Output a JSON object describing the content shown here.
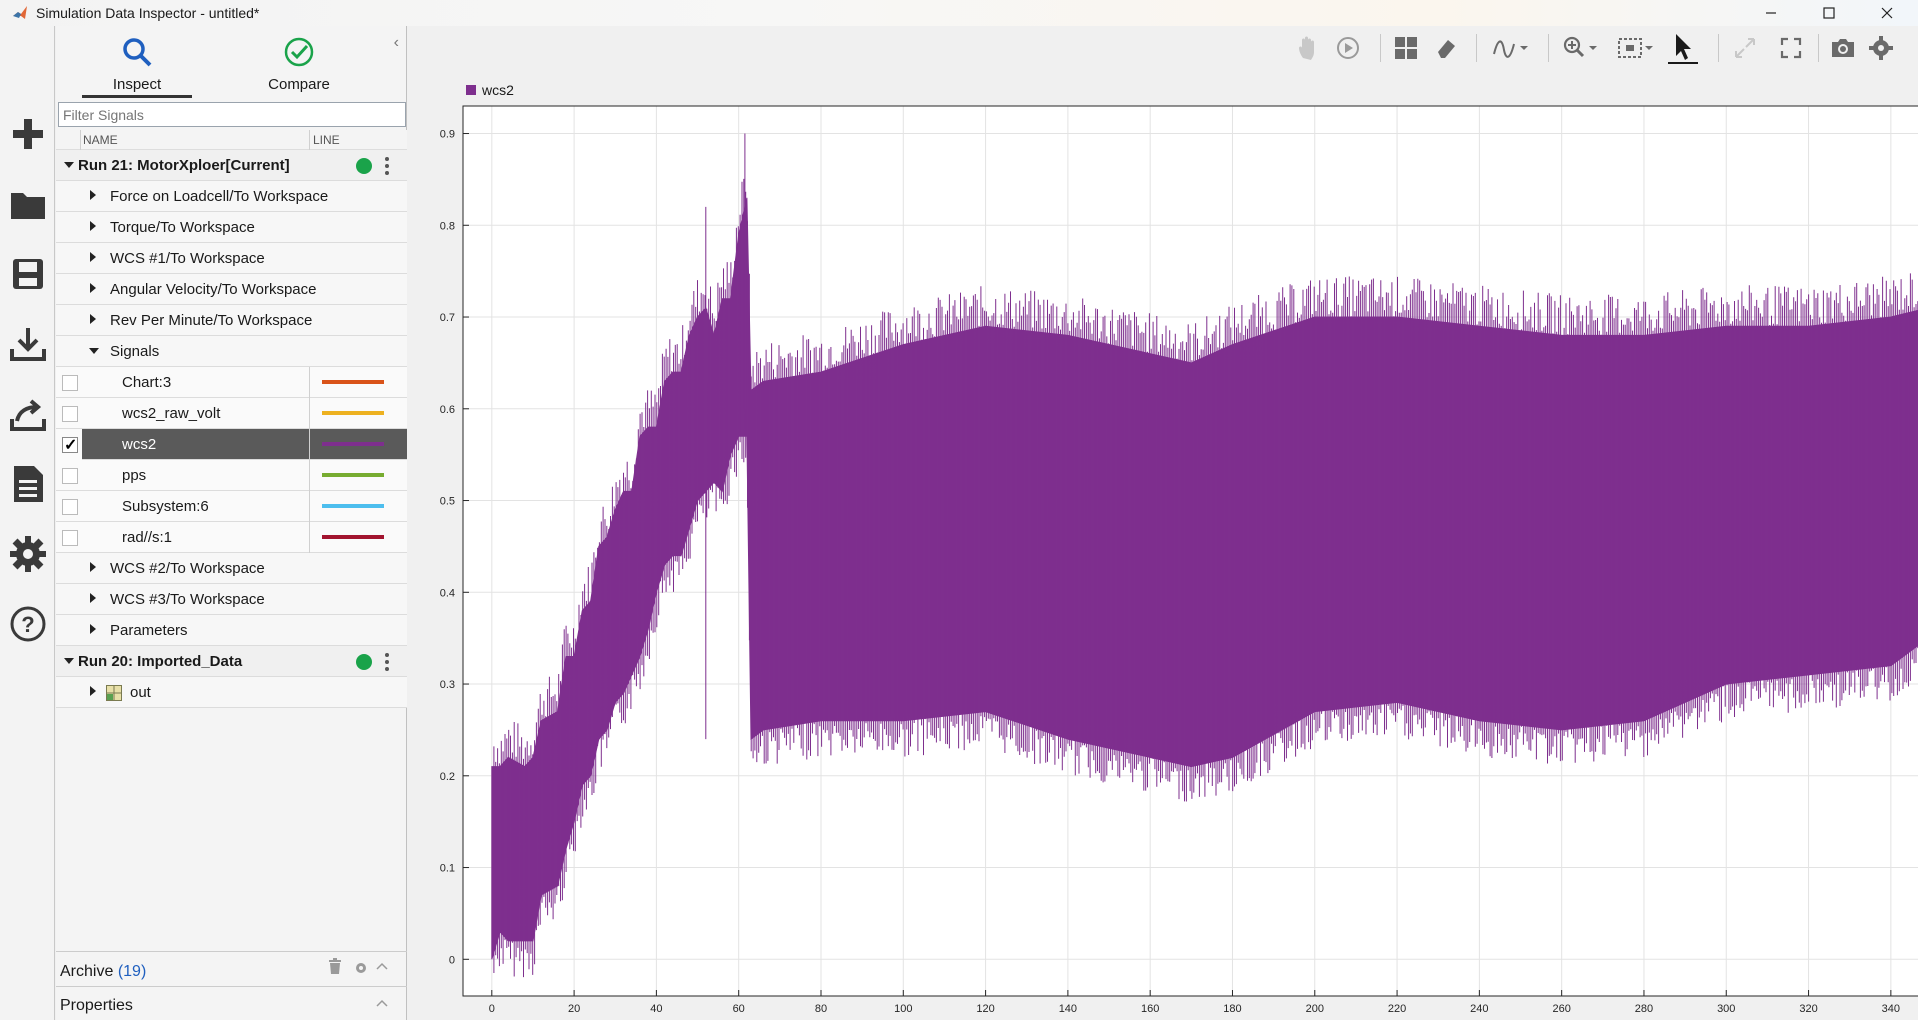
{
  "window": {
    "title": "Simulation Data Inspector - untitled*"
  },
  "tabs": [
    {
      "label": "Inspect"
    },
    {
      "label": "Compare"
    }
  ],
  "filter": {
    "placeholder": "Filter Signals"
  },
  "columns": {
    "name": "NAME",
    "line": "LINE"
  },
  "tree": {
    "run21": {
      "label": "Run 21: MotorXploer[Current]",
      "groups": [
        "Force on Loadcell/To Workspace",
        "Torque/To Workspace",
        "WCS #1/To Workspace",
        "Angular Velocity/To Workspace",
        "Rev Per Minute/To Workspace"
      ],
      "signals_group": "Signals",
      "signals": [
        {
          "name": "Chart:3",
          "color": "#d95319",
          "checked": false
        },
        {
          "name": "wcs2_raw_volt",
          "color": "#edb120",
          "checked": false
        },
        {
          "name": "wcs2",
          "color": "#7e2f8e",
          "checked": true
        },
        {
          "name": "pps",
          "color": "#77ac30",
          "checked": false
        },
        {
          "name": "Subsystem:6",
          "color": "#4dbeee",
          "checked": false
        },
        {
          "name": "rad//s:1",
          "color": "#a2142f",
          "checked": false
        }
      ],
      "groups_after": [
        "WCS #2/To Workspace",
        "WCS #3/To Workspace",
        "Parameters"
      ]
    },
    "run20": {
      "label": "Run 20: Imported_Data",
      "children": [
        "out"
      ]
    }
  },
  "archive": {
    "label": "Archive",
    "count": "(19)"
  },
  "properties": {
    "label": "Properties"
  },
  "chart_data": {
    "type": "line",
    "series": [
      {
        "name": "wcs2",
        "color": "#7e2f8e"
      }
    ],
    "xlim": [
      -7,
      350
    ],
    "ylim": [
      -0.04,
      0.93
    ],
    "xticks": [
      0,
      20,
      40,
      60,
      80,
      100,
      120,
      140,
      160,
      180,
      200,
      220,
      240,
      260,
      280,
      300,
      320,
      340
    ],
    "yticks": [
      0,
      0.1,
      0.2,
      0.3,
      0.4,
      0.5,
      0.6,
      0.7,
      0.8,
      0.9
    ],
    "ytick_labels": [
      "0",
      "0.1",
      "0.2",
      "0.3",
      "0.4",
      "0.5",
      "0.6",
      "0.7",
      "0.8",
      "0.9"
    ],
    "grid": true,
    "envelope": {
      "x": [
        0,
        2,
        4,
        8,
        10,
        12,
        16,
        18,
        20,
        22,
        24,
        26,
        28,
        30,
        32,
        34,
        36,
        38,
        40,
        42,
        44,
        46,
        48,
        50,
        52,
        54,
        56,
        58,
        60,
        62,
        63,
        66,
        80,
        100,
        120,
        140,
        160,
        170,
        180,
        200,
        220,
        240,
        260,
        280,
        300,
        320,
        340,
        349
      ],
      "upper": [
        0.21,
        0.21,
        0.22,
        0.21,
        0.22,
        0.26,
        0.27,
        0.33,
        0.33,
        0.38,
        0.39,
        0.45,
        0.46,
        0.49,
        0.51,
        0.51,
        0.57,
        0.58,
        0.58,
        0.63,
        0.64,
        0.64,
        0.68,
        0.7,
        0.71,
        0.68,
        0.72,
        0.72,
        0.79,
        0.83,
        0.62,
        0.63,
        0.64,
        0.67,
        0.69,
        0.68,
        0.66,
        0.65,
        0.67,
        0.7,
        0.7,
        0.69,
        0.68,
        0.68,
        0.69,
        0.69,
        0.7,
        0.71
      ],
      "lower": [
        0.0,
        0.03,
        0.02,
        0.02,
        0.02,
        0.07,
        0.08,
        0.12,
        0.15,
        0.19,
        0.2,
        0.24,
        0.25,
        0.28,
        0.29,
        0.31,
        0.33,
        0.36,
        0.4,
        0.43,
        0.44,
        0.44,
        0.47,
        0.5,
        0.51,
        0.52,
        0.51,
        0.55,
        0.57,
        0.57,
        0.24,
        0.25,
        0.26,
        0.26,
        0.27,
        0.24,
        0.22,
        0.21,
        0.22,
        0.27,
        0.28,
        0.26,
        0.25,
        0.26,
        0.3,
        0.31,
        0.32,
        0.35
      ]
    }
  }
}
